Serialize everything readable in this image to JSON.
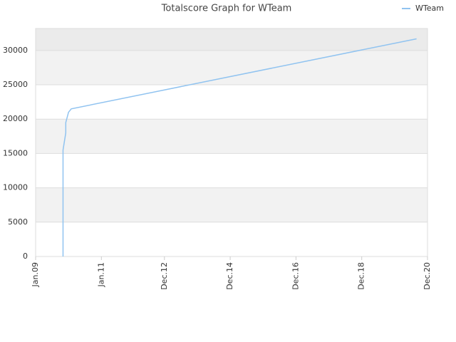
{
  "chart_data": {
    "type": "line",
    "title": "Totalscore Graph for WTeam",
    "x": [
      "2009-11",
      "2009-11",
      "2009-11",
      "2009-12",
      "2009-12",
      "2010-01",
      "2010-02",
      "2020-08"
    ],
    "series": [
      {
        "name": "WTeam",
        "color": "#90c3f0",
        "values": [
          0,
          13500,
          15500,
          18000,
          19500,
          21000,
          21500,
          31700
        ]
      }
    ],
    "xlim": [
      "2009-01",
      "2020-12"
    ],
    "xticks": [
      {
        "value": "2009-01",
        "label": "Jan.09"
      },
      {
        "value": "2011-01",
        "label": "Jan.11"
      },
      {
        "value": "2012-12",
        "label": "Dec.12"
      },
      {
        "value": "2014-12",
        "label": "Dec.14"
      },
      {
        "value": "2016-12",
        "label": "Dec.16"
      },
      {
        "value": "2018-12",
        "label": "Dec.18"
      },
      {
        "value": "2020-12",
        "label": "Dec.20"
      }
    ],
    "ylim": [
      0,
      33200
    ],
    "yticks": [
      0,
      5000,
      10000,
      15000,
      20000,
      25000,
      30000
    ],
    "grid": true,
    "legend": "top-right"
  }
}
